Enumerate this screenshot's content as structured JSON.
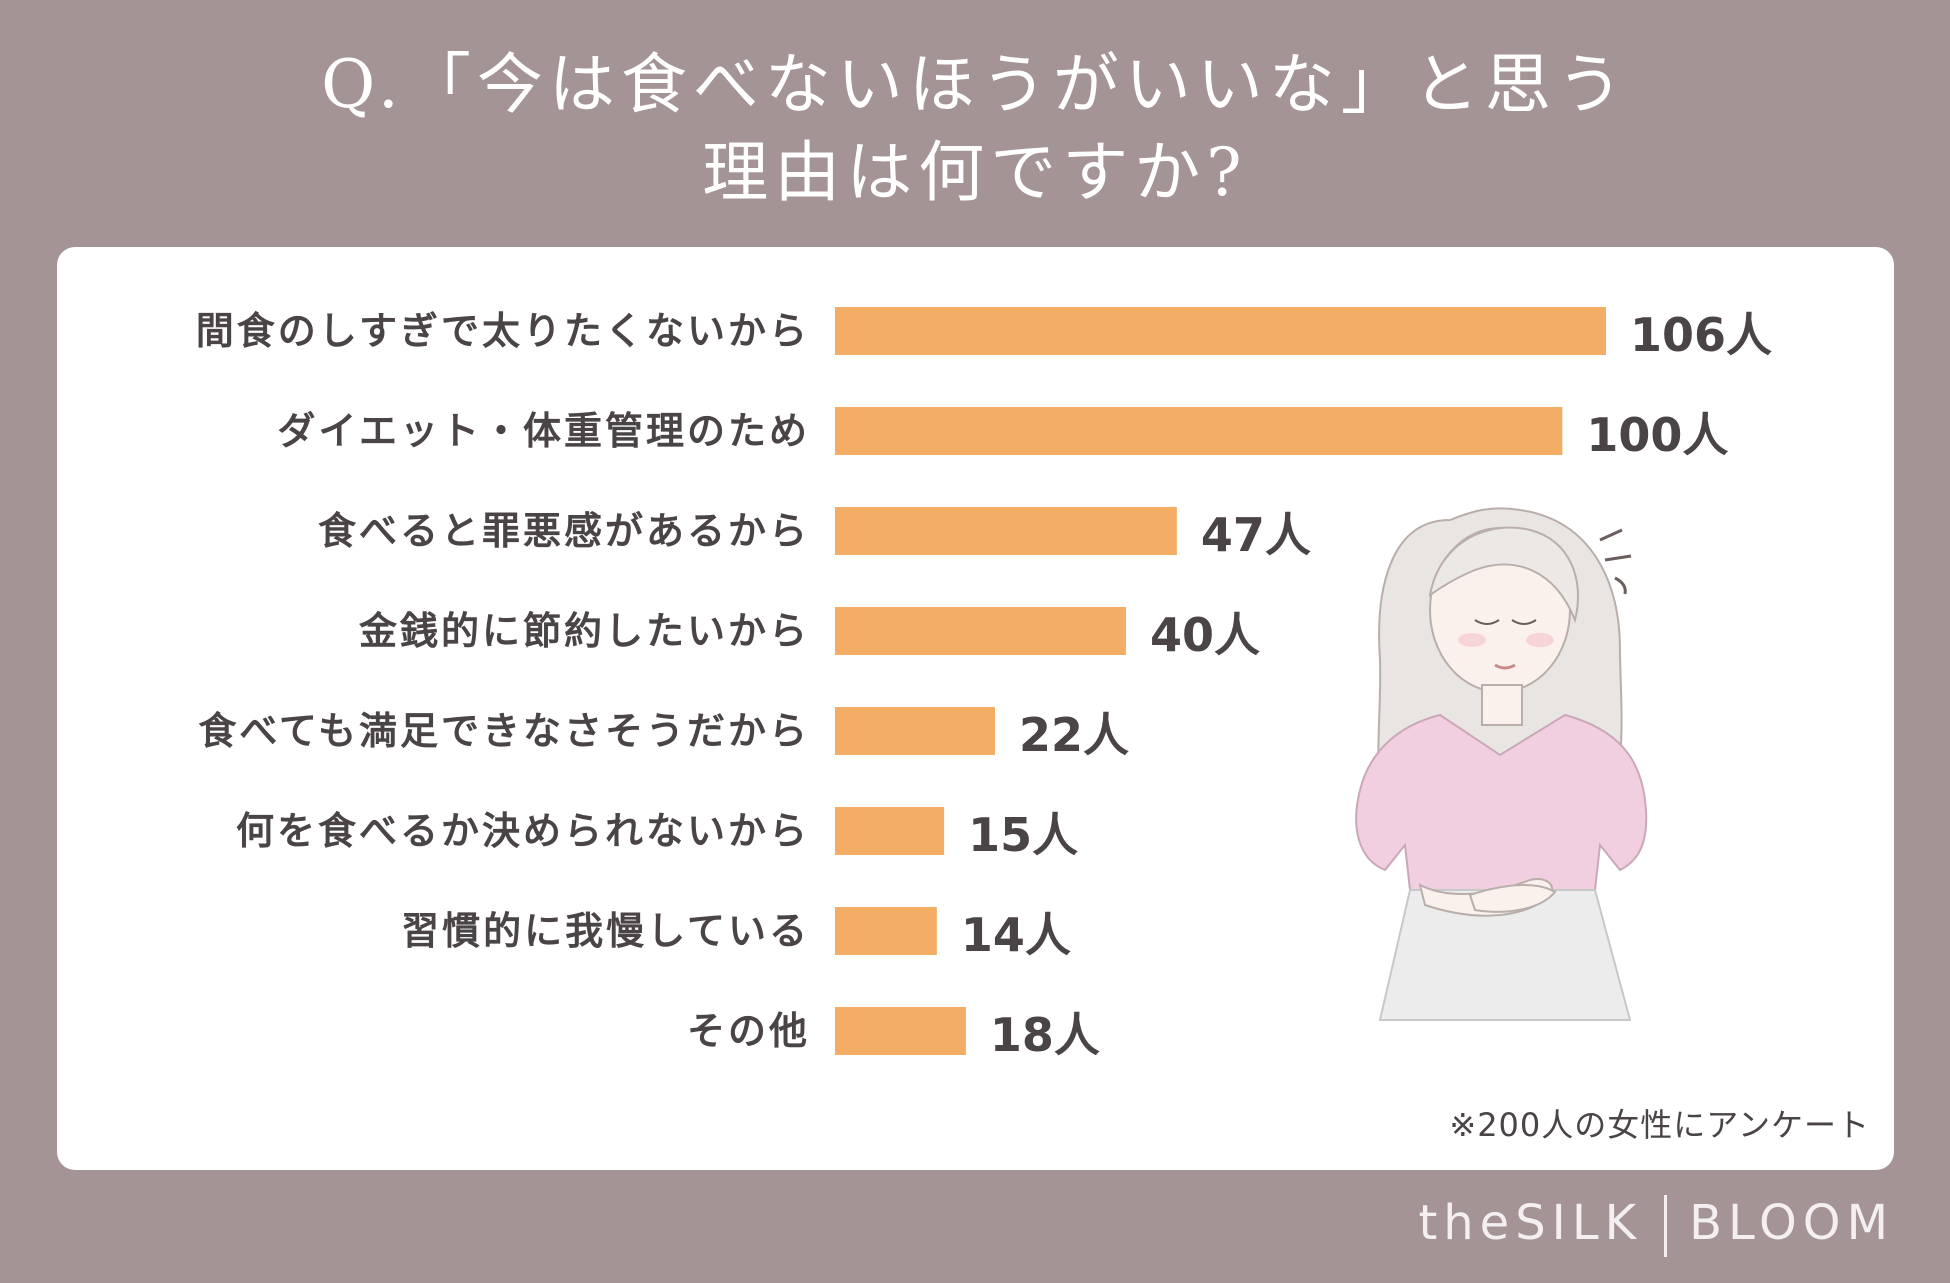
{
  "title": {
    "line1": "Q.「今は食べないほうがいいな」と思う",
    "line2": "理由は何ですか?"
  },
  "note": "※200人の女性にアンケート",
  "brand": {
    "left": "theSILK",
    "right": "BLOOM"
  },
  "colors": {
    "background": "#a49496",
    "bar": "#f4ad64",
    "panel": "#ffffff",
    "text": "#4a4446"
  },
  "chart_data": {
    "type": "bar",
    "orientation": "horizontal",
    "unit": "人",
    "categories": [
      "間食のしすぎで太りたくないから",
      "ダイエット・体重管理のため",
      "食べると罪悪感があるから",
      "金銭的に節約したいから",
      "食べても満足できなさそうだから",
      "何を食べるか決められないから",
      "習慣的に我慢している",
      "その他"
    ],
    "values": [
      106,
      100,
      47,
      40,
      22,
      15,
      14,
      18
    ],
    "value_labels": [
      "106人",
      "100人",
      "47人",
      "40人",
      "22人",
      "15人",
      "14人",
      "18人"
    ],
    "xlim": [
      0,
      106
    ],
    "grid": false
  }
}
